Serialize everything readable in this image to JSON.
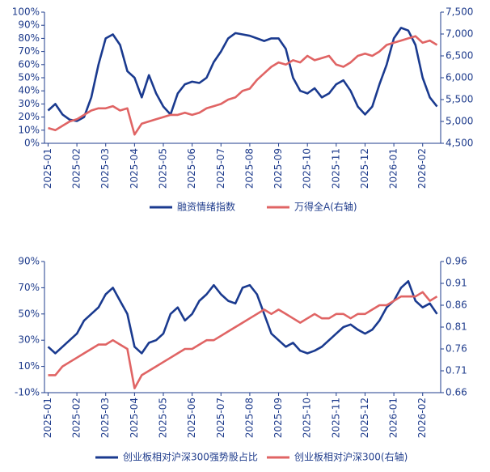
{
  "chart_data": [
    {
      "type": "line",
      "categories": [
        "2025-01",
        null,
        null,
        null,
        "2025-02",
        null,
        null,
        null,
        "2025-03",
        null,
        null,
        null,
        "2025-04",
        null,
        null,
        null,
        "2025-05",
        null,
        null,
        null,
        "2025-06",
        null,
        null,
        null,
        "2025-07",
        null,
        null,
        null,
        "2025-08",
        null,
        null,
        null,
        "2025-09",
        null,
        null,
        null,
        "2025-10",
        null,
        null,
        null,
        "2025-11",
        null,
        null,
        null,
        "2025-12",
        null,
        null,
        null,
        "2026-01",
        null,
        null,
        null,
        "2026-02",
        null,
        null
      ],
      "series": [
        {
          "name": "融资情绪指数",
          "color": "#1a3a8f",
          "values": [
            25,
            30,
            22,
            18,
            17,
            20,
            35,
            60,
            80,
            83,
            75,
            55,
            50,
            35,
            52,
            38,
            28,
            22,
            38,
            45,
            47,
            46,
            50,
            62,
            70,
            80,
            84,
            83,
            82,
            80,
            78,
            80,
            80,
            72,
            50,
            40,
            38,
            42,
            35,
            38,
            45,
            48,
            40,
            28,
            22,
            28,
            45,
            60,
            80,
            88,
            86,
            75,
            50,
            35,
            28
          ]
        },
        {
          "name": "万得全A(右轴)",
          "color": "#e06464",
          "axis": "y2",
          "values": [
            4850,
            4800,
            4900,
            5000,
            5050,
            5150,
            5250,
            5300,
            5300,
            5350,
            5250,
            5300,
            4700,
            4950,
            5000,
            5050,
            5100,
            5150,
            5150,
            5200,
            5150,
            5200,
            5300,
            5350,
            5400,
            5500,
            5550,
            5700,
            5750,
            5950,
            6100,
            6250,
            6350,
            6300,
            6400,
            6350,
            6500,
            6400,
            6450,
            6500,
            6300,
            6250,
            6350,
            6500,
            6550,
            6500,
            6600,
            6750,
            6800,
            6850,
            6900,
            6950,
            6800,
            6850,
            6750
          ]
        }
      ],
      "ylim": [
        0,
        100
      ],
      "yticks": [
        {
          "value": 0,
          "label": "0%"
        },
        {
          "value": 10,
          "label": "10%"
        },
        {
          "value": 20,
          "label": "20%"
        },
        {
          "value": 30,
          "label": "30%"
        },
        {
          "value": 40,
          "label": "40%"
        },
        {
          "value": 50,
          "label": "50%"
        },
        {
          "value": 60,
          "label": "60%"
        },
        {
          "value": 70,
          "label": "70%"
        },
        {
          "value": 80,
          "label": "80%"
        },
        {
          "value": 90,
          "label": "90%"
        },
        {
          "value": 100,
          "label": "100%"
        }
      ],
      "y2lim": [
        4500,
        7500
      ],
      "y2ticks": [
        {
          "value": 4500,
          "label": "4,500"
        },
        {
          "value": 5000,
          "label": "5,000"
        },
        {
          "value": 5500,
          "label": "5,500"
        },
        {
          "value": 6000,
          "label": "6,000"
        },
        {
          "value": 6500,
          "label": "6,500"
        },
        {
          "value": 7000,
          "label": "7,000"
        },
        {
          "value": 7500,
          "label": "7,500"
        }
      ],
      "legend": "bottom"
    },
    {
      "type": "line",
      "categories": [
        "2025-01",
        null,
        null,
        null,
        "2025-02",
        null,
        null,
        null,
        "2025-03",
        null,
        null,
        null,
        "2025-04",
        null,
        null,
        null,
        "2025-05",
        null,
        null,
        null,
        "2025-06",
        null,
        null,
        null,
        "2025-07",
        null,
        null,
        null,
        "2025-08",
        null,
        null,
        null,
        "2025-09",
        null,
        null,
        null,
        "2025-10",
        null,
        null,
        null,
        "2025-11",
        null,
        null,
        null,
        "2025-12",
        null,
        null,
        null,
        "2026-01",
        null,
        null,
        null,
        "2026-02",
        null,
        null
      ],
      "series": [
        {
          "name": "创业板相对沪深300强势股占比",
          "color": "#1a3a8f",
          "values": [
            25,
            20,
            25,
            30,
            35,
            45,
            50,
            55,
            65,
            70,
            60,
            50,
            25,
            20,
            28,
            30,
            35,
            50,
            55,
            45,
            50,
            60,
            65,
            72,
            65,
            60,
            58,
            70,
            72,
            65,
            50,
            35,
            30,
            25,
            28,
            22,
            20,
            22,
            25,
            30,
            35,
            40,
            42,
            38,
            35,
            38,
            45,
            55,
            60,
            70,
            75,
            60,
            55,
            58,
            50
          ]
        },
        {
          "name": "创业板相对沪深300(右轴)",
          "color": "#e06464",
          "axis": "y2",
          "values": [
            0.7,
            0.7,
            0.72,
            0.73,
            0.74,
            0.75,
            0.76,
            0.77,
            0.77,
            0.78,
            0.77,
            0.76,
            0.67,
            0.7,
            0.71,
            0.72,
            0.73,
            0.74,
            0.75,
            0.76,
            0.76,
            0.77,
            0.78,
            0.78,
            0.79,
            0.8,
            0.81,
            0.82,
            0.83,
            0.84,
            0.85,
            0.84,
            0.85,
            0.84,
            0.83,
            0.82,
            0.83,
            0.84,
            0.83,
            0.83,
            0.84,
            0.84,
            0.83,
            0.84,
            0.84,
            0.85,
            0.86,
            0.86,
            0.87,
            0.88,
            0.88,
            0.88,
            0.89,
            0.87,
            0.88
          ]
        }
      ],
      "ylim": [
        -10,
        90
      ],
      "yticks": [
        {
          "value": -10,
          "label": "-10%"
        },
        {
          "value": 10,
          "label": "10%"
        },
        {
          "value": 30,
          "label": "30%"
        },
        {
          "value": 50,
          "label": "50%"
        },
        {
          "value": 70,
          "label": "70%"
        },
        {
          "value": 90,
          "label": "90%"
        }
      ],
      "y2lim": [
        0.66,
        0.96
      ],
      "y2ticks": [
        0.66,
        0.71,
        0.76,
        0.81,
        0.86,
        0.91,
        0.96
      ],
      "legend": "bottom"
    }
  ]
}
